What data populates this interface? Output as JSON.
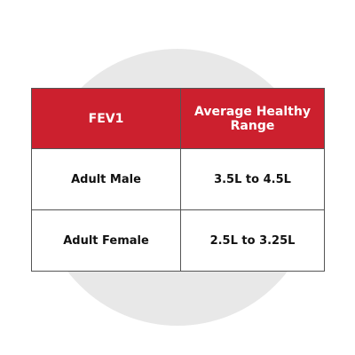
{
  "table": {
    "header": [
      "FEV1",
      "Average Healthy Range"
    ],
    "rows": [
      [
        "Adult Male",
        "3.5L to 4.5L"
      ],
      [
        "Adult Female",
        "2.5L to 3.25L"
      ]
    ]
  }
}
